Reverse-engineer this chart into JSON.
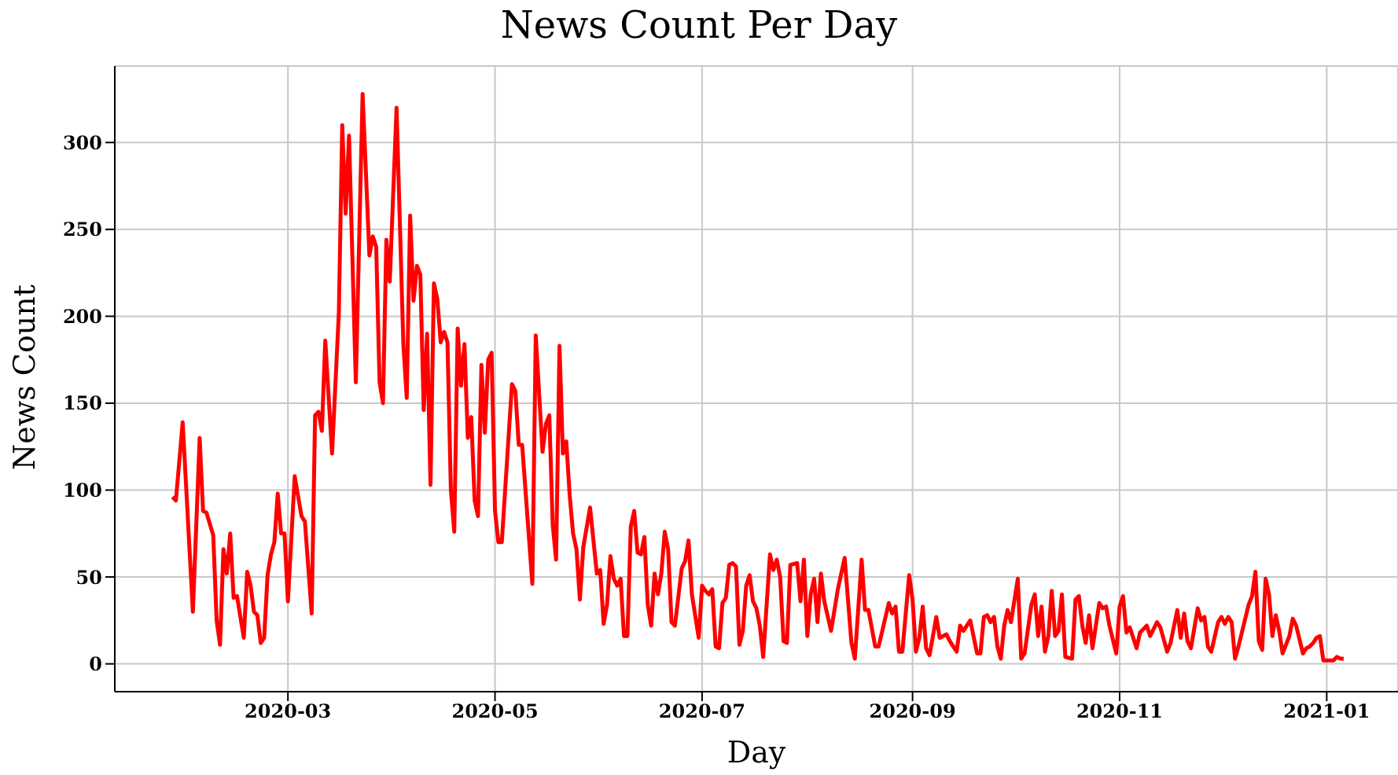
{
  "chart_data": {
    "type": "line",
    "title": "News Count Per Day",
    "xlabel": "Day",
    "ylabel": "News Count",
    "x": [
      "2020-01-27",
      "2020-01-28",
      "2020-01-30",
      "2020-02-02",
      "2020-02-04",
      "2020-02-05",
      "2020-02-06",
      "2020-02-08",
      "2020-02-09",
      "2020-02-10",
      "2020-02-11",
      "2020-02-12",
      "2020-02-13",
      "2020-02-14",
      "2020-02-15",
      "2020-02-17",
      "2020-02-18",
      "2020-02-19",
      "2020-02-20",
      "2020-02-21",
      "2020-02-22",
      "2020-02-23",
      "2020-02-24",
      "2020-02-25",
      "2020-02-26",
      "2020-02-27",
      "2020-02-28",
      "2020-02-29",
      "2020-03-01",
      "2020-03-03",
      "2020-03-05",
      "2020-03-06",
      "2020-03-08",
      "2020-03-09",
      "2020-03-10",
      "2020-03-11",
      "2020-03-12",
      "2020-03-14",
      "2020-03-16",
      "2020-03-17",
      "2020-03-18",
      "2020-03-19",
      "2020-03-21",
      "2020-03-23",
      "2020-03-25",
      "2020-03-26",
      "2020-03-27",
      "2020-03-28",
      "2020-03-29",
      "2020-03-30",
      "2020-03-31",
      "2020-04-02",
      "2020-04-04",
      "2020-04-05",
      "2020-04-06",
      "2020-04-07",
      "2020-04-08",
      "2020-04-09",
      "2020-04-10",
      "2020-04-11",
      "2020-04-12",
      "2020-04-13",
      "2020-04-14",
      "2020-04-15",
      "2020-04-16",
      "2020-04-17",
      "2020-04-18",
      "2020-04-19",
      "2020-04-20",
      "2020-04-21",
      "2020-04-22",
      "2020-04-23",
      "2020-04-24",
      "2020-04-25",
      "2020-04-26",
      "2020-04-27",
      "2020-04-28",
      "2020-04-29",
      "2020-04-30",
      "2020-05-01",
      "2020-05-02",
      "2020-05-03",
      "2020-05-06",
      "2020-05-07",
      "2020-05-08",
      "2020-05-09",
      "2020-05-12",
      "2020-05-13",
      "2020-05-15",
      "2020-05-16",
      "2020-05-17",
      "2020-05-18",
      "2020-05-19",
      "2020-05-20",
      "2020-05-21",
      "2020-05-22",
      "2020-05-23",
      "2020-05-24",
      "2020-05-25",
      "2020-05-26",
      "2020-05-27",
      "2020-05-29",
      "2020-05-31",
      "2020-06-01",
      "2020-06-02",
      "2020-06-03",
      "2020-06-04",
      "2020-06-05",
      "2020-06-06",
      "2020-06-07",
      "2020-06-08",
      "2020-06-09",
      "2020-06-10",
      "2020-06-11",
      "2020-06-12",
      "2020-06-13",
      "2020-06-14",
      "2020-06-15",
      "2020-06-16",
      "2020-06-17",
      "2020-06-18",
      "2020-06-19",
      "2020-06-20",
      "2020-06-21",
      "2020-06-22",
      "2020-06-23",
      "2020-06-25",
      "2020-06-26",
      "2020-06-27",
      "2020-06-28",
      "2020-06-30",
      "2020-07-01",
      "2020-07-02",
      "2020-07-03",
      "2020-07-04",
      "2020-07-05",
      "2020-07-06",
      "2020-07-07",
      "2020-07-08",
      "2020-07-09",
      "2020-07-10",
      "2020-07-11",
      "2020-07-12",
      "2020-07-13",
      "2020-07-14",
      "2020-07-15",
      "2020-07-16",
      "2020-07-17",
      "2020-07-18",
      "2020-07-19",
      "2020-07-21",
      "2020-07-22",
      "2020-07-23",
      "2020-07-24",
      "2020-07-25",
      "2020-07-26",
      "2020-07-27",
      "2020-07-29",
      "2020-07-30",
      "2020-07-31",
      "2020-08-01",
      "2020-08-02",
      "2020-08-03",
      "2020-08-04",
      "2020-08-05",
      "2020-08-06",
      "2020-08-08",
      "2020-08-10",
      "2020-08-12",
      "2020-08-14",
      "2020-08-15",
      "2020-08-17",
      "2020-08-18",
      "2020-08-19",
      "2020-08-21",
      "2020-08-22",
      "2020-08-25",
      "2020-08-26",
      "2020-08-27",
      "2020-08-28",
      "2020-08-29",
      "2020-08-31",
      "2020-09-01",
      "2020-09-02",
      "2020-09-03",
      "2020-09-04",
      "2020-09-05",
      "2020-09-06",
      "2020-09-08",
      "2020-09-09",
      "2020-09-11",
      "2020-09-12",
      "2020-09-14",
      "2020-09-15",
      "2020-09-16",
      "2020-09-17",
      "2020-09-18",
      "2020-09-20",
      "2020-09-21",
      "2020-09-22",
      "2020-09-23",
      "2020-09-24",
      "2020-09-25",
      "2020-09-26",
      "2020-09-27",
      "2020-09-28",
      "2020-09-29",
      "2020-09-30",
      "2020-10-02",
      "2020-10-03",
      "2020-10-04",
      "2020-10-06",
      "2020-10-07",
      "2020-10-08",
      "2020-10-09",
      "2020-10-10",
      "2020-10-11",
      "2020-10-12",
      "2020-10-13",
      "2020-10-14",
      "2020-10-15",
      "2020-10-16",
      "2020-10-18",
      "2020-10-19",
      "2020-10-20",
      "2020-10-21",
      "2020-10-22",
      "2020-10-23",
      "2020-10-24",
      "2020-10-26",
      "2020-10-27",
      "2020-10-28",
      "2020-10-29",
      "2020-10-31",
      "2020-11-01",
      "2020-11-02",
      "2020-11-03",
      "2020-11-04",
      "2020-11-06",
      "2020-11-07",
      "2020-11-09",
      "2020-11-10",
      "2020-11-12",
      "2020-11-13",
      "2020-11-15",
      "2020-11-16",
      "2020-11-18",
      "2020-11-19",
      "2020-11-20",
      "2020-11-21",
      "2020-11-22",
      "2020-11-24",
      "2020-11-25",
      "2020-11-26",
      "2020-11-27",
      "2020-11-28",
      "2020-11-30",
      "2020-12-01",
      "2020-12-02",
      "2020-12-03",
      "2020-12-04",
      "2020-12-05",
      "2020-12-06",
      "2020-12-07",
      "2020-12-09",
      "2020-12-10",
      "2020-12-11",
      "2020-12-12",
      "2020-12-13",
      "2020-12-14",
      "2020-12-15",
      "2020-12-16",
      "2020-12-17",
      "2020-12-18",
      "2020-12-19",
      "2020-12-21",
      "2020-12-22",
      "2020-12-23",
      "2020-12-25",
      "2020-12-26",
      "2020-12-27",
      "2020-12-28",
      "2020-12-29",
      "2020-12-30",
      "2020-12-31",
      "2021-01-03",
      "2021-01-04",
      "2021-01-05",
      "2021-01-06"
    ],
    "series": [
      {
        "color": "#ff0000",
        "values": [
          96,
          94,
          139,
          30,
          130,
          88,
          87,
          74,
          25,
          11,
          66,
          52,
          75,
          38,
          39,
          15,
          53,
          45,
          30,
          28,
          12,
          15,
          51,
          63,
          70,
          98,
          75,
          75,
          36,
          108,
          85,
          82,
          29,
          143,
          145,
          134,
          186,
          121,
          202,
          310,
          259,
          304,
          162,
          328,
          235,
          246,
          240,
          162,
          150,
          244,
          220,
          320,
          184,
          153,
          258,
          209,
          229,
          224,
          146,
          190,
          103,
          219,
          210,
          185,
          191,
          185,
          100,
          76,
          193,
          160,
          184,
          130,
          142,
          94,
          85,
          172,
          133,
          175,
          179,
          88,
          70,
          70,
          161,
          157,
          126,
          126,
          46,
          189,
          122,
          138,
          143,
          80,
          60,
          183,
          121,
          128,
          97,
          75,
          66,
          37,
          67,
          90,
          52,
          54,
          23,
          34,
          62,
          49,
          45,
          49,
          16,
          16,
          79,
          88,
          64,
          63,
          73,
          34,
          22,
          52,
          40,
          52,
          76,
          66,
          24,
          22,
          55,
          59,
          71,
          40,
          15,
          45,
          42,
          40,
          43,
          10,
          9,
          35,
          38,
          57,
          58,
          56,
          11,
          19,
          45,
          51,
          36,
          32,
          22,
          4,
          63,
          54,
          60,
          50,
          13,
          12,
          57,
          58,
          36,
          60,
          16,
          40,
          49,
          24,
          52,
          36,
          19,
          43,
          61,
          12,
          3,
          60,
          31,
          31,
          10,
          10,
          35,
          29,
          33,
          7,
          7,
          51,
          37,
          7,
          15,
          33,
          9,
          5,
          27,
          15,
          17,
          13,
          7,
          22,
          19,
          22,
          25,
          6,
          6,
          27,
          28,
          24,
          27,
          10,
          3,
          22,
          31,
          24,
          49,
          3,
          6,
          34,
          40,
          16,
          33,
          7,
          16,
          42,
          16,
          19,
          40,
          4,
          3,
          37,
          39,
          22,
          12,
          28,
          9,
          35,
          32,
          33,
          22,
          6,
          33,
          39,
          18,
          21,
          9,
          18,
          22,
          16,
          24,
          21,
          7,
          12,
          31,
          15,
          29,
          13,
          9,
          32,
          25,
          27,
          10,
          7,
          24,
          27,
          23,
          27,
          24,
          3,
          10,
          18,
          34,
          39,
          53,
          13,
          8,
          49,
          40,
          16,
          28,
          19,
          6,
          16,
          26,
          22,
          6,
          9,
          10,
          12,
          15,
          16,
          2,
          2,
          4,
          3,
          3
        ]
      }
    ],
    "xlim": [
      "2020-01-10",
      "2021-01-22"
    ],
    "xticks": [
      "2020-03",
      "2020-05",
      "2020-07",
      "2020-09",
      "2020-11",
      "2021-01"
    ],
    "ylim": [
      -16,
      344
    ],
    "yticks": [
      0,
      50,
      100,
      150,
      200,
      250,
      300
    ],
    "grid": true,
    "marker": "none",
    "line_style": "solid"
  }
}
